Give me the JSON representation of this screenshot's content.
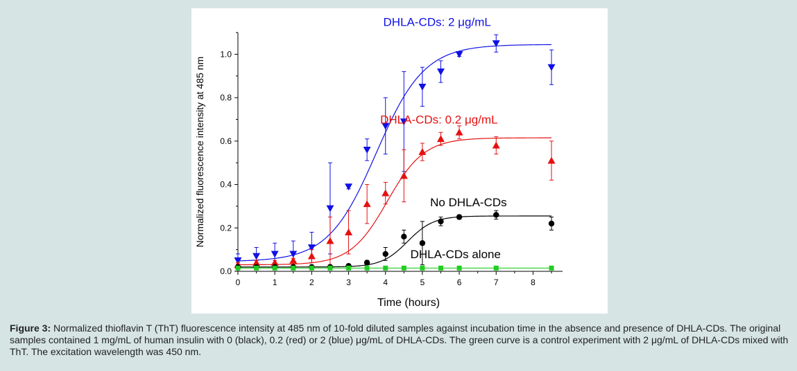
{
  "colors": {
    "background": "#d6e4e4",
    "panel": "#ffffff",
    "axis": "#000000"
  },
  "caption": {
    "label": "Figure 3:",
    "text": " Normalized thioflavin T (ThT) fluorescence intensity at 485 nm of 10-fold diluted samples against incubation time in the absence and presence of DHLA-CDs. The original samples contained 1 mg/mL of human insulin with 0 (black), 0.2 (red) or 2 (blue) μg/mL of DHLA-CDs. The green curve is a control experiment with 2 μg/mL of DHLA-CDs mixed with ThT. The excitation wavelength was 450 nm."
  },
  "chart_data": {
    "type": "scatter",
    "xlabel": "Time (hours)",
    "ylabel": "Normalized fluorescence intensity at 485 nm",
    "xlim": [
      0,
      8.8
    ],
    "ylim": [
      0,
      1.1
    ],
    "xticks": [
      "0",
      "1",
      "2",
      "3",
      "4",
      "5",
      "6",
      "7",
      "8"
    ],
    "yticks": [
      "0.0",
      "0.2",
      "0.4",
      "0.6",
      "0.8",
      "1.0"
    ],
    "grid": false,
    "series": [
      {
        "name": "DHLA-CDs: 2 μg/mL",
        "color": "#1010e6",
        "marker": "triangle-down",
        "x": [
          0,
          0.5,
          1,
          1.5,
          2,
          2.5,
          3,
          3.5,
          4,
          4.5,
          5,
          5.5,
          6,
          7,
          8.5
        ],
        "y": [
          0.05,
          0.07,
          0.08,
          0.08,
          0.11,
          0.29,
          0.39,
          0.56,
          0.67,
          0.69,
          0.85,
          0.92,
          1.0,
          1.05,
          0.94
        ],
        "err": [
          0.03,
          0.04,
          0.05,
          0.06,
          0.07,
          0.21,
          0.01,
          0.05,
          0.13,
          0.23,
          0.09,
          0.05,
          0.01,
          0.04,
          0.08
        ],
        "fit": {
          "bottom": 0.045,
          "top": 1.045,
          "x50": 3.75,
          "slope": 0.65
        }
      },
      {
        "name": "DHLA-CDs: 0.2 μg/mL",
        "color": "#e61010",
        "marker": "triangle-up",
        "x": [
          0,
          0.5,
          1,
          1.5,
          2,
          2.5,
          3,
          3.5,
          4,
          4.5,
          5,
          5.5,
          6,
          7,
          8.5
        ],
        "y": [
          0.03,
          0.04,
          0.04,
          0.05,
          0.07,
          0.14,
          0.18,
          0.31,
          0.36,
          0.44,
          0.55,
          0.61,
          0.64,
          0.58,
          0.51
        ],
        "err": [
          0.01,
          0.01,
          0.01,
          0.01,
          0.03,
          0.11,
          0.1,
          0.09,
          0.05,
          0.12,
          0.04,
          0.03,
          0.03,
          0.04,
          0.09
        ],
        "fit": {
          "bottom": 0.03,
          "top": 0.615,
          "x50": 4.05,
          "slope": 0.5
        }
      },
      {
        "name": "No DHLA-CDs",
        "color": "#000000",
        "marker": "circle",
        "x": [
          0,
          0.5,
          1,
          1.5,
          2,
          2.5,
          3,
          3.5,
          4,
          4.5,
          5,
          5.5,
          6,
          7,
          8.5
        ],
        "y": [
          0.02,
          0.02,
          0.02,
          0.02,
          0.02,
          0.02,
          0.025,
          0.04,
          0.08,
          0.16,
          0.13,
          0.23,
          0.25,
          0.26,
          0.22
        ],
        "err": [
          0.005,
          0.005,
          0.005,
          0.005,
          0.005,
          0.005,
          0.005,
          0.01,
          0.03,
          0.03,
          0.1,
          0.02,
          0.01,
          0.02,
          0.03
        ],
        "fit": {
          "bottom": 0.02,
          "top": 0.255,
          "x50": 4.6,
          "slope": 0.35
        }
      },
      {
        "name": "DHLA-CDs alone",
        "color": "#22cc22",
        "marker": "square",
        "x": [
          0,
          0.5,
          1,
          1.5,
          2,
          2.5,
          3,
          3.5,
          4,
          4.5,
          5,
          5.5,
          6,
          7,
          8.5
        ],
        "y": [
          0.015,
          0.015,
          0.015,
          0.015,
          0.015,
          0.015,
          0.015,
          0.015,
          0.015,
          0.015,
          0.015,
          0.015,
          0.015,
          0.015,
          0.015
        ],
        "err": [
          0,
          0,
          0,
          0,
          0,
          0,
          0,
          0,
          0,
          0,
          0,
          0,
          0,
          0,
          0
        ],
        "fit": {
          "bottom": 0.015,
          "top": 0.015,
          "x50": 4,
          "slope": 1
        }
      }
    ],
    "annotations": [
      {
        "text": "DHLA-CDs: 2 μg/mL",
        "color": "#1010e6",
        "x": 5.4,
        "y": 1.13
      },
      {
        "text": "DHLA-CDs: 0.2 μg/mL",
        "color": "#e61010",
        "x": 5.45,
        "y": 0.68
      },
      {
        "text": "No DHLA-CDs",
        "color": "#000000",
        "x": 6.25,
        "y": 0.3
      },
      {
        "text": "DHLA-CDs alone",
        "color": "#000000",
        "x": 5.9,
        "y": 0.06
      }
    ]
  }
}
